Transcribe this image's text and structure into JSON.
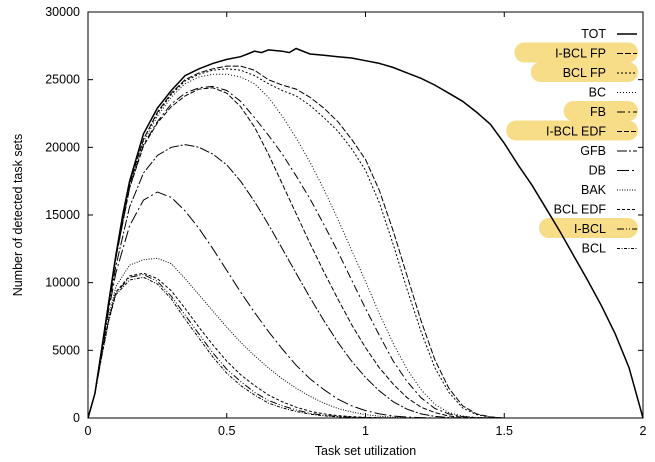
{
  "chart_data": {
    "type": "line",
    "title": "",
    "xlabel": "Task set utilization",
    "ylabel": "Number of detected task sets",
    "xlim": [
      0,
      2
    ],
    "ylim": [
      0,
      30000
    ],
    "xticks": [
      0,
      0.5,
      1,
      1.5,
      2
    ],
    "xtick_labels": [
      "0",
      "0.5",
      "1",
      "1.5",
      "2"
    ],
    "yticks": [
      0,
      5000,
      10000,
      15000,
      20000,
      25000,
      30000
    ],
    "ytick_labels": [
      "0",
      "5000",
      "10000",
      "15000",
      "20000",
      "25000",
      "30000"
    ],
    "grid": false,
    "legend_position": "top-right",
    "highlight_color": "#f7d774",
    "highlighted_series": [
      "I-BCL FP",
      "BCL FP",
      "FB",
      "I-BCL EDF",
      "I-BCL"
    ],
    "series": [
      {
        "name": "TOT",
        "dash": "solid",
        "x": [
          0,
          0.025,
          0.05,
          0.075,
          0.1,
          0.125,
          0.15,
          0.2,
          0.25,
          0.3,
          0.35,
          0.4,
          0.45,
          0.5,
          0.55,
          0.575,
          0.6,
          0.625,
          0.65,
          0.7,
          0.725,
          0.75,
          0.8,
          0.85,
          0.9,
          0.95,
          1.0,
          1.05,
          1.1,
          1.15,
          1.2,
          1.25,
          1.3,
          1.35,
          1.4,
          1.45,
          1.5,
          1.55,
          1.6,
          1.65,
          1.7,
          1.75,
          1.8,
          1.85,
          1.9,
          1.95,
          2.0
        ],
        "y": [
          0,
          1800,
          5200,
          8600,
          12000,
          15000,
          17500,
          21000,
          22900,
          24200,
          25300,
          25800,
          26200,
          26500,
          26700,
          26900,
          27100,
          27000,
          27200,
          27100,
          27000,
          27300,
          26900,
          26800,
          26700,
          26600,
          26400,
          26200,
          25900,
          25500,
          25100,
          24600,
          24000,
          23400,
          22600,
          21700,
          20300,
          18700,
          17200,
          15500,
          13800,
          12000,
          10200,
          8300,
          6200,
          3700,
          0
        ]
      },
      {
        "name": "I-BCL FP",
        "dash": "6,2",
        "x": [
          0,
          0.025,
          0.05,
          0.075,
          0.1,
          0.15,
          0.2,
          0.25,
          0.3,
          0.35,
          0.4,
          0.45,
          0.5,
          0.55,
          0.6,
          0.65,
          0.7,
          0.75,
          0.8,
          0.85,
          0.9,
          0.95,
          1.0,
          1.05,
          1.1,
          1.15,
          1.2,
          1.25,
          1.3,
          1.35,
          1.4,
          1.45,
          1.5
        ],
        "y": [
          0,
          1800,
          5200,
          8600,
          11900,
          17300,
          20600,
          22600,
          24000,
          25000,
          25500,
          25800,
          26000,
          26000,
          25700,
          25000,
          24600,
          24300,
          23700,
          22900,
          21900,
          20600,
          19100,
          16800,
          13800,
          10500,
          7200,
          4300,
          2200,
          900,
          300,
          80,
          0
        ]
      },
      {
        "name": "BCL FP",
        "dash": "2,2",
        "x": [
          0,
          0.025,
          0.05,
          0.075,
          0.1,
          0.15,
          0.2,
          0.25,
          0.3,
          0.35,
          0.4,
          0.45,
          0.5,
          0.55,
          0.6,
          0.65,
          0.7,
          0.75,
          0.8,
          0.85,
          0.9,
          0.95,
          1.0,
          1.05,
          1.1,
          1.15,
          1.2,
          1.25,
          1.3,
          1.35,
          1.4,
          1.45,
          1.5
        ],
        "y": [
          0,
          1800,
          5200,
          8600,
          11900,
          17300,
          20600,
          22500,
          23900,
          24900,
          25400,
          25700,
          25800,
          25700,
          25300,
          24700,
          24200,
          23800,
          23100,
          22200,
          21200,
          19900,
          18300,
          15900,
          12800,
          9500,
          6400,
          3700,
          1900,
          750,
          250,
          60,
          0
        ]
      },
      {
        "name": "BC",
        "dash": "1,2",
        "x": [
          0,
          0.025,
          0.05,
          0.075,
          0.1,
          0.15,
          0.2,
          0.25,
          0.3,
          0.35,
          0.4,
          0.45,
          0.5,
          0.55,
          0.6,
          0.65,
          0.7,
          0.75,
          0.8,
          0.85,
          0.9,
          0.95,
          1.0,
          1.05,
          1.1,
          1.15,
          1.2,
          1.25,
          1.3,
          1.35,
          1.4,
          1.45,
          1.5
        ],
        "y": [
          0,
          1800,
          5200,
          8600,
          11900,
          17200,
          20400,
          22300,
          23700,
          24700,
          25200,
          25400,
          25400,
          25200,
          24700,
          23700,
          22300,
          20700,
          18900,
          16900,
          14700,
          12400,
          10100,
          7700,
          5500,
          3600,
          2100,
          1000,
          400,
          150,
          40,
          10,
          0
        ]
      },
      {
        "name": "FB",
        "dash": "8,3,2,3",
        "x": [
          0,
          0.025,
          0.05,
          0.075,
          0.1,
          0.15,
          0.2,
          0.25,
          0.3,
          0.35,
          0.4,
          0.45,
          0.5,
          0.55,
          0.6,
          0.65,
          0.7,
          0.75,
          0.8,
          0.85,
          0.9,
          0.95,
          1.0,
          1.05,
          1.1,
          1.15,
          1.2,
          1.25,
          1.3,
          1.35,
          1.4,
          1.45,
          1.5
        ],
        "y": [
          0,
          1800,
          5200,
          8600,
          11800,
          17000,
          20200,
          21900,
          23200,
          24000,
          24400,
          24500,
          24200,
          23400,
          22200,
          20900,
          19500,
          17900,
          16200,
          14300,
          12300,
          10200,
          8100,
          6100,
          4200,
          2700,
          1500,
          700,
          300,
          100,
          30,
          10,
          0
        ]
      },
      {
        "name": "I-BCL EDF",
        "dash": "5,2",
        "x": [
          0,
          0.025,
          0.05,
          0.075,
          0.1,
          0.15,
          0.2,
          0.25,
          0.3,
          0.35,
          0.4,
          0.45,
          0.5,
          0.55,
          0.6,
          0.65,
          0.7,
          0.75,
          0.8,
          0.85,
          0.9,
          0.95,
          1.0,
          1.05,
          1.1,
          1.15,
          1.2,
          1.25,
          1.3,
          1.35,
          1.4,
          1.45,
          1.5
        ],
        "y": [
          0,
          1800,
          5200,
          8600,
          11800,
          17000,
          20100,
          21800,
          23000,
          23800,
          24300,
          24400,
          24000,
          23000,
          21500,
          19500,
          17300,
          15100,
          12900,
          10800,
          8800,
          6900,
          5200,
          3700,
          2500,
          1500,
          800,
          400,
          150,
          50,
          20,
          5,
          0
        ]
      },
      {
        "name": "GFB",
        "dash": "10,2,2,2",
        "x": [
          0,
          0.025,
          0.05,
          0.075,
          0.1,
          0.15,
          0.2,
          0.25,
          0.3,
          0.35,
          0.4,
          0.45,
          0.5,
          0.55,
          0.6,
          0.65,
          0.7,
          0.75,
          0.8,
          0.85,
          0.9,
          0.95,
          1.0,
          1.05,
          1.1,
          1.15,
          1.2,
          1.25,
          1.3,
          1.35,
          1.4,
          1.45,
          1.5
        ],
        "y": [
          0,
          1800,
          5100,
          8300,
          11200,
          15600,
          18100,
          19400,
          20000,
          20200,
          20000,
          19500,
          18700,
          17500,
          16000,
          14300,
          12500,
          10700,
          8900,
          7200,
          5600,
          4200,
          3000,
          2000,
          1200,
          650,
          300,
          120,
          40,
          10,
          0,
          0,
          0
        ]
      },
      {
        "name": "DB",
        "dash": "12,3,2,3",
        "x": [
          0,
          0.025,
          0.05,
          0.075,
          0.1,
          0.15,
          0.2,
          0.25,
          0.3,
          0.35,
          0.4,
          0.45,
          0.5,
          0.55,
          0.6,
          0.65,
          0.7,
          0.75,
          0.8,
          0.85,
          0.9,
          0.95,
          1.0,
          1.05,
          1.1,
          1.15,
          1.2,
          1.25,
          1.3,
          1.35,
          1.4,
          1.45,
          1.5
        ],
        "y": [
          0,
          1800,
          5000,
          8000,
          10700,
          14200,
          16100,
          16700,
          16300,
          15300,
          14000,
          12500,
          10900,
          9300,
          7800,
          6400,
          5100,
          3900,
          2900,
          2100,
          1400,
          900,
          550,
          300,
          150,
          70,
          30,
          10,
          0,
          0,
          0,
          0,
          0
        ]
      },
      {
        "name": "BAK",
        "dash": "1,1.5",
        "x": [
          0,
          0.025,
          0.05,
          0.075,
          0.1,
          0.15,
          0.2,
          0.25,
          0.3,
          0.35,
          0.4,
          0.45,
          0.5,
          0.55,
          0.6,
          0.65,
          0.7,
          0.75,
          0.8,
          0.85,
          0.9,
          0.95,
          1.0,
          1.05,
          1.1,
          1.15,
          1.2,
          1.25,
          1.3,
          1.35,
          1.4,
          1.45,
          1.5
        ],
        "y": [
          0,
          1800,
          4800,
          7500,
          9700,
          11300,
          11700,
          11800,
          11400,
          10300,
          9100,
          7900,
          6700,
          5600,
          4600,
          3700,
          2900,
          2200,
          1600,
          1100,
          700,
          450,
          250,
          130,
          60,
          25,
          10,
          0,
          0,
          0,
          0,
          0,
          0
        ]
      },
      {
        "name": "BCL EDF",
        "dash": "3,2",
        "x": [
          0,
          0.025,
          0.05,
          0.075,
          0.1,
          0.15,
          0.2,
          0.25,
          0.3,
          0.35,
          0.4,
          0.45,
          0.5,
          0.55,
          0.6,
          0.65,
          0.7,
          0.75,
          0.8,
          0.85,
          0.9,
          0.95,
          1.0,
          1.05,
          1.1,
          1.15,
          1.2,
          1.25,
          1.3,
          1.35,
          1.4,
          1.45,
          1.5
        ],
        "y": [
          0,
          1800,
          4700,
          7300,
          9300,
          10500,
          10700,
          10300,
          9400,
          8100,
          6700,
          5400,
          4200,
          3200,
          2400,
          1700,
          1200,
          800,
          500,
          300,
          180,
          100,
          50,
          20,
          10,
          0,
          0,
          0,
          0,
          0,
          0,
          0,
          0
        ]
      },
      {
        "name": "I-BCL",
        "dash": "7,2,1,2,1,2",
        "x": [
          0,
          0.025,
          0.05,
          0.075,
          0.1,
          0.15,
          0.2,
          0.25,
          0.3,
          0.35,
          0.4,
          0.45,
          0.5,
          0.55,
          0.6,
          0.65,
          0.7,
          0.75,
          0.8,
          0.85,
          0.9,
          0.95,
          1.0,
          1.05,
          1.1,
          1.15,
          1.2,
          1.25,
          1.3,
          1.35,
          1.4,
          1.45,
          1.5
        ],
        "y": [
          0,
          1800,
          4700,
          7300,
          9200,
          10400,
          10600,
          10100,
          9000,
          7600,
          6200,
          4800,
          3600,
          2700,
          1900,
          1300,
          900,
          600,
          350,
          200,
          110,
          60,
          30,
          10,
          0,
          0,
          0,
          0,
          0,
          0,
          0,
          0,
          0
        ]
      },
      {
        "name": "BCL",
        "dash": "3,1.5,1,1.5",
        "x": [
          0,
          0.025,
          0.05,
          0.075,
          0.1,
          0.15,
          0.2,
          0.25,
          0.3,
          0.35,
          0.4,
          0.45,
          0.5,
          0.55,
          0.6,
          0.65,
          0.7,
          0.75,
          0.8,
          0.85,
          0.9,
          0.95,
          1.0,
          1.05,
          1.1,
          1.15,
          1.2,
          1.25,
          1.3,
          1.35,
          1.4,
          1.45,
          1.5
        ],
        "y": [
          0,
          1800,
          4600,
          7200,
          9100,
          10200,
          10400,
          9900,
          8800,
          7300,
          5900,
          4500,
          3300,
          2400,
          1700,
          1100,
          750,
          480,
          280,
          160,
          90,
          45,
          20,
          8,
          0,
          0,
          0,
          0,
          0,
          0,
          0,
          0,
          0
        ]
      }
    ]
  }
}
